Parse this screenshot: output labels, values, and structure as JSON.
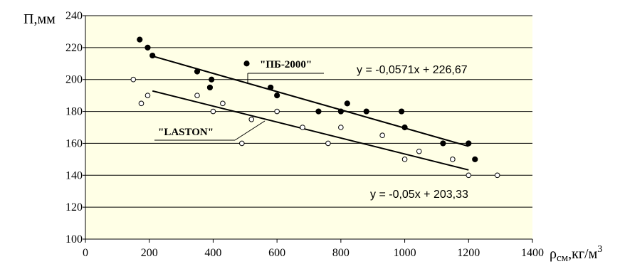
{
  "chart_data": {
    "type": "scatter",
    "title": "",
    "ylabel": "П,мм",
    "xlabel_main": "ρ",
    "xlabel_sub": "см",
    "xlabel_unit": ",кг/м",
    "xlabel_sup": "3",
    "xlim": [
      0,
      1400
    ],
    "ylim": [
      100,
      240
    ],
    "xticks": [
      0,
      200,
      400,
      600,
      800,
      1000,
      1200,
      1400
    ],
    "yticks": [
      100,
      120,
      140,
      160,
      180,
      200,
      220,
      240
    ],
    "grid": "horizontal",
    "plot_background": "#ffffe6",
    "series": [
      {
        "name": "\"ПБ-2000\"",
        "marker": "filled",
        "color": "#000000",
        "points": [
          [
            170,
            225
          ],
          [
            195,
            220
          ],
          [
            210,
            215
          ],
          [
            350,
            205
          ],
          [
            395,
            200
          ],
          [
            390,
            195
          ],
          [
            505,
            210
          ],
          [
            580,
            195
          ],
          [
            600,
            190
          ],
          [
            730,
            180
          ],
          [
            800,
            180
          ],
          [
            820,
            185
          ],
          [
            880,
            180
          ],
          [
            990,
            180
          ],
          [
            1000,
            170
          ],
          [
            1120,
            160
          ],
          [
            1200,
            160
          ],
          [
            1220,
            150
          ]
        ],
        "trendline": {
          "equation": "y = -0,0571x + 226,67",
          "slope": -0.0571,
          "intercept": 226.67,
          "x_range": [
            210,
            1200
          ]
        }
      },
      {
        "name": "\"LASTON\"",
        "marker": "hollow",
        "color": "#000000",
        "points": [
          [
            150,
            200
          ],
          [
            175,
            185
          ],
          [
            195,
            190
          ],
          [
            350,
            190
          ],
          [
            400,
            180
          ],
          [
            430,
            185
          ],
          [
            490,
            160
          ],
          [
            520,
            175
          ],
          [
            600,
            180
          ],
          [
            680,
            170
          ],
          [
            760,
            160
          ],
          [
            800,
            170
          ],
          [
            930,
            165
          ],
          [
            1000,
            150
          ],
          [
            1045,
            155
          ],
          [
            1150,
            150
          ],
          [
            1200,
            140
          ],
          [
            1290,
            140
          ]
        ],
        "trendline": {
          "equation": "y = -0,05x + 203,33",
          "slope": -0.05,
          "intercept": 203.33,
          "x_range": [
            210,
            1200
          ]
        }
      }
    ]
  }
}
